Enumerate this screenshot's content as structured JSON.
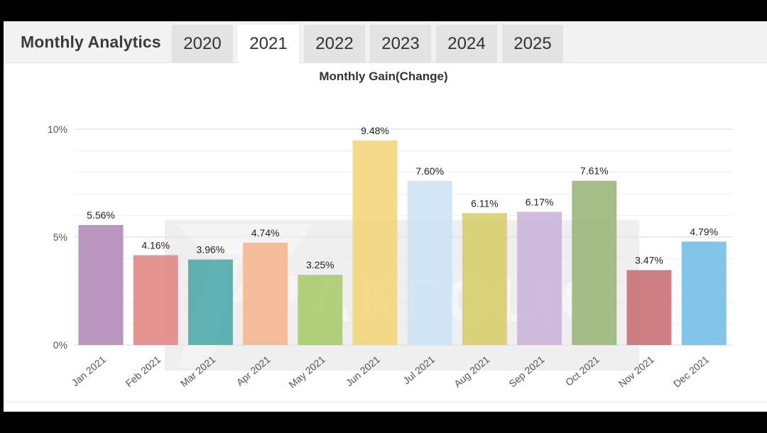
{
  "header": {
    "title": "Monthly Analytics",
    "tabs": [
      {
        "label": "2020",
        "active": false
      },
      {
        "label": "2021",
        "active": true
      },
      {
        "label": "2022",
        "active": false
      },
      {
        "label": "2023",
        "active": false
      },
      {
        "label": "2024",
        "active": false
      },
      {
        "label": "2025",
        "active": false
      }
    ]
  },
  "watermark": {
    "text": "AKFOLIO"
  },
  "chart_data": {
    "type": "bar",
    "title": "Monthly Gain(Change)",
    "xlabel": "",
    "ylabel": "",
    "ylim": [
      0,
      10
    ],
    "yticks": [
      "0%",
      "5%",
      "10%"
    ],
    "grid": true,
    "categories": [
      "Jan 2021",
      "Feb 2021",
      "Mar 2021",
      "Apr 2021",
      "May 2021",
      "Jun 2021",
      "Jul 2021",
      "Aug 2021",
      "Sep 2021",
      "Oct 2021",
      "Nov 2021",
      "Dec 2021"
    ],
    "values": [
      5.56,
      4.16,
      3.96,
      4.74,
      3.25,
      9.48,
      7.6,
      6.11,
      6.17,
      7.61,
      3.47,
      4.79
    ],
    "value_labels": [
      "5.56%",
      "4.16%",
      "3.96%",
      "4.74%",
      "3.25%",
      "9.48%",
      "7.60%",
      "6.11%",
      "6.17%",
      "7.61%",
      "3.47%",
      "4.79%"
    ],
    "colors": [
      "#b087b5",
      "#e08583",
      "#4aa7a8",
      "#f5b58e",
      "#a9c96a",
      "#f2d67a",
      "#cde2f5",
      "#d9cd6b",
      "#c9b4d8",
      "#98b579",
      "#c76d6f",
      "#71bde6"
    ]
  }
}
